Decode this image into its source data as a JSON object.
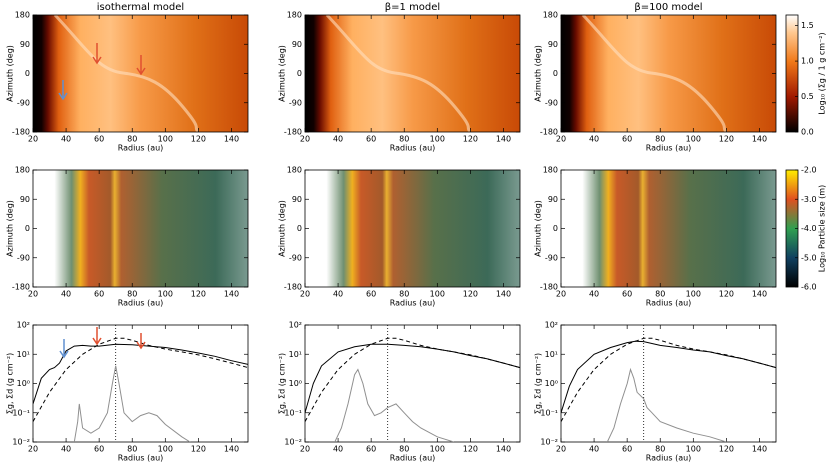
{
  "chart_data": [
    {
      "type": "heatmap",
      "title": "isothermal model",
      "xlabel": "Radius (au)",
      "ylabel": "Azimuth (deg)",
      "xlim": [
        20,
        150
      ],
      "ylim": [
        -180,
        180
      ],
      "xticks": [
        20,
        40,
        60,
        80,
        100,
        120,
        140
      ],
      "yticks": [
        -180,
        -90,
        0,
        90,
        180
      ]
    },
    {
      "type": "heatmap",
      "title": "β=1 model",
      "xlabel": "Radius (au)",
      "ylabel": "Azimuth (deg)",
      "xlim": [
        20,
        150
      ],
      "ylim": [
        -180,
        180
      ],
      "xticks": [
        20,
        40,
        60,
        80,
        100,
        120,
        140
      ],
      "yticks": [
        -180,
        -90,
        0,
        90,
        180
      ]
    },
    {
      "type": "heatmap",
      "title": "β=100 model",
      "xlabel": "Radius (au)",
      "ylabel": "Azimuth (deg)",
      "xlim": [
        20,
        150
      ],
      "ylim": [
        -180,
        180
      ],
      "xticks": [
        20,
        40,
        60,
        80,
        100,
        120,
        140
      ],
      "yticks": [
        -180,
        -90,
        0,
        90,
        180
      ]
    },
    {
      "type": "particles",
      "xlabel": "Radius (au)",
      "ylabel": "Azimuth (deg)",
      "xlim": [
        20,
        150
      ],
      "ylim": [
        -180,
        180
      ],
      "xticks": [
        20,
        40,
        60,
        80,
        100,
        120,
        140
      ],
      "yticks": [
        -180,
        -90,
        0,
        90,
        180
      ]
    },
    {
      "type": "particles",
      "xlabel": "Radius (au)",
      "ylabel": "Azimuth (deg)",
      "xlim": [
        20,
        150
      ],
      "ylim": [
        -180,
        180
      ],
      "xticks": [
        20,
        40,
        60,
        80,
        100,
        120,
        140
      ],
      "yticks": [
        -180,
        -90,
        0,
        90,
        180
      ]
    },
    {
      "type": "particles",
      "xlabel": "Radius (au)",
      "ylabel": "Azimuth (deg)",
      "xlim": [
        20,
        150
      ],
      "ylim": [
        -180,
        180
      ],
      "xticks": [
        20,
        40,
        60,
        80,
        100,
        120,
        140
      ],
      "yticks": [
        -180,
        -90,
        0,
        90,
        180
      ]
    },
    {
      "type": "line",
      "xlabel": "Radius (au)",
      "ylabel": "Σg, Σd (g cm⁻²)",
      "xlim": [
        20,
        150
      ],
      "ylim": [
        0.01,
        100
      ],
      "log_y": true,
      "vline": 70,
      "xticks": [
        20,
        40,
        60,
        80,
        100,
        120,
        140
      ],
      "yticks": [
        {
          "value": 0.01,
          "label": "10⁻²"
        },
        {
          "value": 0.1,
          "label": "10⁻¹"
        },
        {
          "value": 1,
          "label": "10⁰"
        },
        {
          "value": 10,
          "label": "10¹"
        },
        {
          "value": 100,
          "label": "10²"
        }
      ],
      "series": [
        {
          "color": "#000000",
          "style": "solid",
          "x": [
            20,
            25,
            30,
            33,
            36,
            40,
            45,
            50,
            55,
            60,
            70,
            80,
            90,
            100,
            110,
            120,
            130,
            140,
            150
          ],
          "values": [
            0.2,
            1.5,
            3,
            3.5,
            5,
            13,
            19,
            20,
            19,
            19,
            22,
            21,
            19,
            17,
            14,
            11,
            8.5,
            6,
            4.5
          ]
        },
        {
          "color": "#000000",
          "style": "dashed",
          "x": [
            20,
            30,
            40,
            50,
            60,
            70,
            75,
            80,
            90,
            100,
            110,
            120,
            130,
            140,
            150
          ],
          "values": [
            0.05,
            0.5,
            3,
            10,
            22,
            35,
            35,
            30,
            20,
            15,
            12,
            9.5,
            7,
            5,
            3.5
          ]
        },
        {
          "color": "#909090",
          "style": "solid",
          "x": [
            45,
            47,
            48,
            50,
            55,
            60,
            65,
            68,
            70,
            72,
            75,
            80,
            85,
            90,
            95,
            100,
            110,
            115
          ],
          "values": [
            0.01,
            0.05,
            0.2,
            0.03,
            0.02,
            0.03,
            0.1,
            1,
            4,
            1,
            0.1,
            0.05,
            0.08,
            0.1,
            0.08,
            0.04,
            0.015,
            0.01
          ]
        }
      ]
    },
    {
      "type": "line",
      "xlabel": "Radius (au)",
      "ylabel": "Σg, Σd (g cm⁻²)",
      "xlim": [
        20,
        150
      ],
      "ylim": [
        0.01,
        100
      ],
      "log_y": true,
      "vline": 70,
      "xticks": [
        20,
        40,
        60,
        80,
        100,
        120,
        140
      ],
      "yticks": [
        {
          "value": 0.01,
          "label": "10⁻²"
        },
        {
          "value": 0.1,
          "label": "10⁻¹"
        },
        {
          "value": 1,
          "label": "10⁰"
        },
        {
          "value": 10,
          "label": "10¹"
        },
        {
          "value": 100,
          "label": "10²"
        }
      ],
      "series": [
        {
          "color": "#000000",
          "style": "solid",
          "x": [
            20,
            25,
            30,
            40,
            50,
            60,
            70,
            80,
            90,
            100,
            110,
            120,
            130,
            140,
            150
          ],
          "values": [
            0.1,
            1,
            4,
            12,
            18,
            22,
            22,
            20,
            18,
            15,
            12,
            9,
            7,
            5,
            3.5
          ]
        },
        {
          "color": "#000000",
          "style": "dashed",
          "x": [
            20,
            30,
            40,
            50,
            60,
            70,
            75,
            80,
            90,
            100,
            110,
            120,
            130,
            140,
            150
          ],
          "values": [
            0.05,
            0.5,
            3,
            10,
            22,
            35,
            35,
            30,
            20,
            15,
            12,
            9.5,
            7,
            5,
            3.5
          ]
        },
        {
          "color": "#909090",
          "style": "solid",
          "x": [
            38,
            42,
            46,
            50,
            52,
            55,
            58,
            62,
            66,
            70,
            75,
            80,
            85,
            90,
            100,
            110
          ],
          "values": [
            0.01,
            0.03,
            0.2,
            2,
            3,
            1,
            0.2,
            0.08,
            0.1,
            0.15,
            0.2,
            0.1,
            0.05,
            0.03,
            0.015,
            0.01
          ]
        }
      ]
    },
    {
      "type": "line",
      "xlabel": "Radius (au)",
      "ylabel": "Σg, Σd (g cm⁻²)",
      "xlim": [
        20,
        150
      ],
      "ylim": [
        0.01,
        100
      ],
      "log_y": true,
      "vline": 70,
      "xticks": [
        20,
        40,
        60,
        80,
        100,
        120,
        140
      ],
      "yticks": [
        {
          "value": 0.01,
          "label": "10⁻²"
        },
        {
          "value": 0.1,
          "label": "10⁻¹"
        },
        {
          "value": 1,
          "label": "10⁰"
        },
        {
          "value": 10,
          "label": "10¹"
        },
        {
          "value": 100,
          "label": "10²"
        }
      ],
      "series": [
        {
          "color": "#000000",
          "style": "solid",
          "x": [
            20,
            25,
            30,
            40,
            50,
            60,
            65,
            70,
            80,
            90,
            100,
            110,
            120,
            130,
            140,
            150
          ],
          "values": [
            0.1,
            0.8,
            3,
            10,
            17,
            25,
            28,
            27,
            20,
            17,
            14,
            12,
            9,
            7,
            5,
            3.5
          ]
        },
        {
          "color": "#000000",
          "style": "dashed",
          "x": [
            20,
            30,
            40,
            50,
            60,
            70,
            75,
            80,
            90,
            100,
            110,
            120,
            130,
            140,
            150
          ],
          "values": [
            0.05,
            0.5,
            3,
            10,
            22,
            35,
            35,
            30,
            20,
            15,
            12,
            9.5,
            7,
            5,
            3.5
          ]
        },
        {
          "color": "#909090",
          "style": "solid",
          "x": [
            48,
            52,
            56,
            60,
            62,
            64,
            66,
            70,
            72,
            75,
            80,
            90,
            100,
            110,
            120
          ],
          "values": [
            0.01,
            0.03,
            0.2,
            1,
            3,
            1.5,
            0.5,
            0.3,
            0.15,
            0.1,
            0.05,
            0.03,
            0.02,
            0.015,
            0.01
          ]
        }
      ]
    },
    {
      "type": "colorbar",
      "label": "Log₁₀ (Σg / 1 g cm⁻²)",
      "ylim": [
        0,
        1.65
      ],
      "yticks": [
        {
          "value": 0,
          "label": "0.0"
        },
        {
          "value": 0.5,
          "label": "0.5"
        },
        {
          "value": 1,
          "label": "1.0"
        },
        {
          "value": 1.5,
          "label": "1.5"
        }
      ]
    },
    {
      "type": "colorbar",
      "label": "Log₁₀ Particle size (m)",
      "ylim": [
        -6,
        -2
      ],
      "yticks": [
        {
          "value": -2,
          "label": "-2.0"
        },
        {
          "value": -3,
          "label": "-3.0"
        },
        {
          "value": -4,
          "label": "-4.0"
        },
        {
          "value": -5,
          "label": "-5.0"
        },
        {
          "value": -6,
          "label": "-6.0"
        }
      ]
    }
  ]
}
